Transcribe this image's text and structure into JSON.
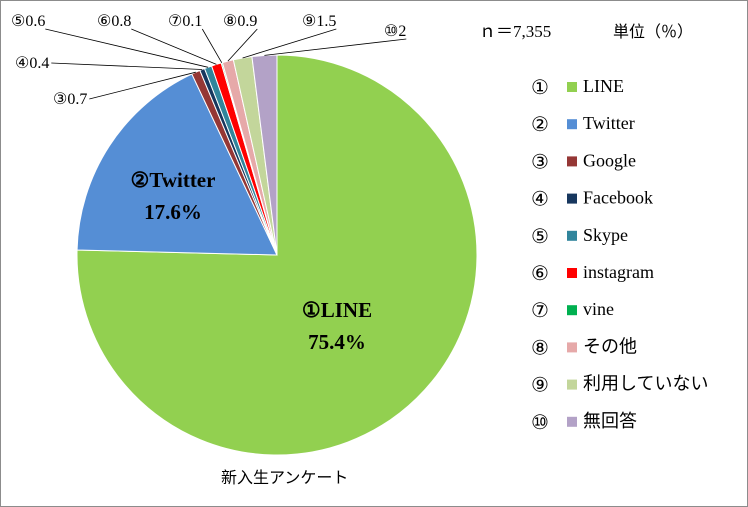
{
  "chart_data": {
    "type": "pie",
    "sample_size_label": "ｎ＝7,355",
    "unit_label": "単位（％）",
    "caption": "新入生アンケート",
    "series": [
      {
        "mark": "①",
        "name": "LINE",
        "value": 75.4,
        "color": "#92d050"
      },
      {
        "mark": "②",
        "name": "Twitter",
        "value": 17.6,
        "color": "#558ed5"
      },
      {
        "mark": "③",
        "name": "Google",
        "value": 0.7,
        "color": "#953735"
      },
      {
        "mark": "④",
        "name": "Facebook",
        "value": 0.4,
        "color": "#17375e"
      },
      {
        "mark": "⑤",
        "name": "Skype",
        "value": 0.6,
        "color": "#31859c"
      },
      {
        "mark": "⑥",
        "name": "instagram",
        "value": 0.8,
        "color": "#ff0000"
      },
      {
        "mark": "⑦",
        "name": "vine",
        "value": 0.1,
        "color": "#00b050"
      },
      {
        "mark": "⑧",
        "name": "その他",
        "value": 0.9,
        "color": "#e6a9a9"
      },
      {
        "mark": "⑨",
        "name": "利用していない",
        "value": 1.5,
        "color": "#c3d69b"
      },
      {
        "mark": "⑩",
        "name": "無回答",
        "value": 2,
        "color": "#b3a2c7"
      }
    ],
    "data_labels": {
      "large": [
        {
          "line1": "①LINE",
          "line2": "75.4%"
        },
        {
          "line1": "②Twitter",
          "line2": "17.6%"
        }
      ],
      "small": [
        "③0.7",
        "④0.4",
        "⑤0.6",
        "⑥0.8",
        "⑦0.1",
        "⑧0.9",
        "⑨1.5",
        "⑩2"
      ]
    },
    "legend_position": "right"
  }
}
